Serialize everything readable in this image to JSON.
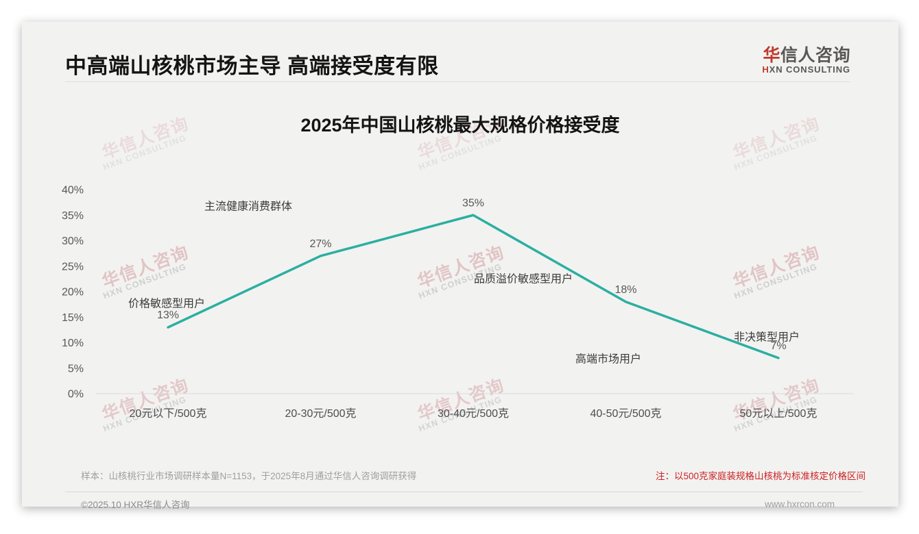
{
  "header": {
    "title": "中高端山核桃市场主导 高端接受度有限"
  },
  "logo": {
    "cn_first": "华",
    "cn_rest": "信人咨询",
    "en_first": "H",
    "en_rest": "XN CONSULTING"
  },
  "watermark": {
    "cn": "华信人咨询",
    "en": "HXN CONSULTING"
  },
  "chart_data": {
    "type": "line",
    "title": "2025年中国山核桃最大规格价格接受度",
    "categories": [
      "20元以下/500克",
      "20-30元/500克",
      "30-40元/500克",
      "40-50元/500克",
      "50元以上/500克"
    ],
    "values": [
      13,
      27,
      35,
      18,
      7
    ],
    "value_labels": [
      "13%",
      "27%",
      "35%",
      "18%",
      "7%"
    ],
    "ylabel": "",
    "xlabel": "",
    "ylim": [
      0,
      40
    ],
    "ytick_step": 5,
    "grid": false,
    "legend": false,
    "line_color": "#2bafa0",
    "annotations": [
      {
        "text": "价格敏感型用户",
        "x": 153,
        "y": 183
      },
      {
        "text": "主流健康消费群体",
        "x": 272,
        "y": 41
      },
      {
        "text": "品质溢价敏感型用户",
        "x": 673,
        "y": 147
      },
      {
        "text": "高端市场用户",
        "x": 797,
        "y": 264
      },
      {
        "text": "非决策型用户",
        "x": 1028,
        "y": 232
      }
    ]
  },
  "footer": {
    "sample_note": "样本：山核桃行业市场调研样本量N=1153，于2025年8月通过华信人咨询调研获得",
    "red_note": "注：以500克家庭装规格山核桃为标准核定价格区间",
    "copyright": "©2025.10 HXR华信人咨询",
    "website": "www.hxrcon.com"
  }
}
